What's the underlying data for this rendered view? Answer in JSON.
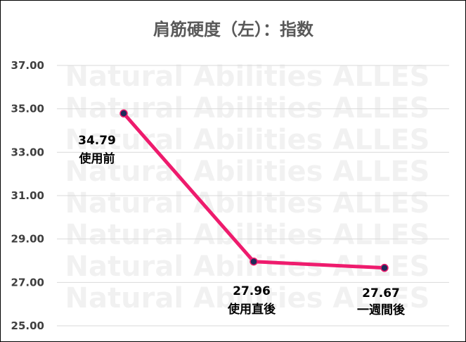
{
  "chart_data": {
    "type": "line",
    "title": "肩筋硬度（左）：指数",
    "categories": [
      "使用前",
      "使用直後",
      "一週間後"
    ],
    "values": [
      34.79,
      27.96,
      27.67
    ],
    "value_labels": [
      "34.79",
      "27.96",
      "27.67"
    ],
    "ylim": [
      25,
      37
    ],
    "yticks": [
      "37.00",
      "35.00",
      "33.00",
      "31.00",
      "29.00",
      "27.00",
      "25.00"
    ],
    "ytick_values": [
      37,
      35,
      33,
      31,
      29,
      27,
      25
    ],
    "grid": true,
    "line_color": "#ee1b6d",
    "marker_color": "#1f2a5a",
    "watermark": "Natural Abilities ALLES"
  }
}
